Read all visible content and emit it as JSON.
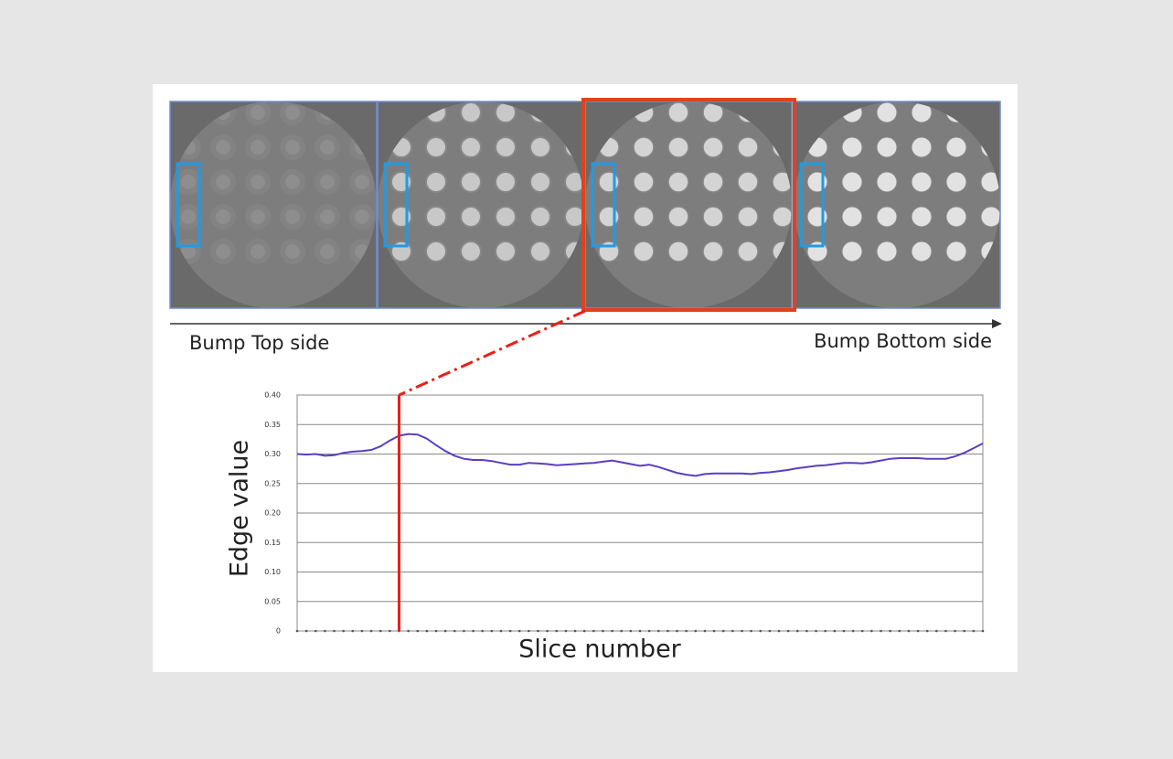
{
  "chart_data": {
    "type": "line",
    "top_label": "Bump Top side",
    "bottom_label": "Bump Bottom side",
    "ylabel": "Edge value",
    "xlabel": "Slice number",
    "color": "#5a3fc0",
    "marker_color": "#e8201a",
    "marker_index": 11,
    "grid": true,
    "ylim": [
      0,
      0.4
    ],
    "yticks": [
      0,
      {
        "value": 0.05,
        "label": "0.05"
      },
      {
        "value": 0.1,
        "label": "0.10"
      },
      {
        "value": 0.15,
        "label": "0.15"
      },
      {
        "value": 0.2,
        "label": "0.20"
      },
      {
        "value": 0.25,
        "label": "0.25"
      },
      {
        "value": 0.3,
        "label": "0.30"
      },
      {
        "value": 0.35,
        "label": "0.35"
      },
      {
        "value": 0.4,
        "label": "0.40"
      }
    ],
    "categories": [
      null,
      null,
      null,
      null,
      null,
      null,
      null,
      null,
      null,
      null,
      null,
      null,
      null,
      null,
      null,
      null,
      null,
      null,
      null,
      null,
      null,
      null,
      null,
      null,
      null,
      null,
      null,
      null,
      null,
      null,
      null,
      null,
      null,
      null,
      null,
      null,
      null,
      null,
      null,
      null,
      null,
      null,
      null,
      null,
      null,
      null,
      null,
      null,
      null,
      null,
      null,
      null,
      null,
      null,
      null,
      null,
      null,
      null,
      null,
      null,
      null,
      null,
      null,
      null,
      null,
      null,
      null,
      null,
      null,
      null,
      null,
      null,
      null,
      null,
      null
    ],
    "values": [
      0.3,
      0.299,
      0.3,
      0.297,
      0.298,
      0.302,
      0.304,
      0.305,
      0.307,
      0.313,
      0.323,
      0.331,
      0.334,
      0.333,
      0.326,
      0.315,
      0.305,
      0.297,
      0.292,
      0.29,
      0.29,
      0.288,
      0.285,
      0.282,
      0.282,
      0.285,
      0.284,
      0.283,
      0.281,
      0.282,
      0.283,
      0.284,
      0.285,
      0.287,
      0.289,
      0.286,
      0.283,
      0.28,
      0.282,
      0.278,
      0.273,
      0.268,
      0.265,
      0.263,
      0.266,
      0.267,
      0.267,
      0.267,
      0.267,
      0.266,
      0.268,
      0.269,
      0.271,
      0.273,
      0.276,
      0.278,
      0.28,
      0.281,
      0.283,
      0.285,
      0.285,
      0.284,
      0.286,
      0.289,
      0.292,
      0.293,
      0.293,
      0.293,
      0.292,
      0.292,
      0.292,
      0.296,
      0.302,
      0.31,
      0.318
    ]
  }
}
